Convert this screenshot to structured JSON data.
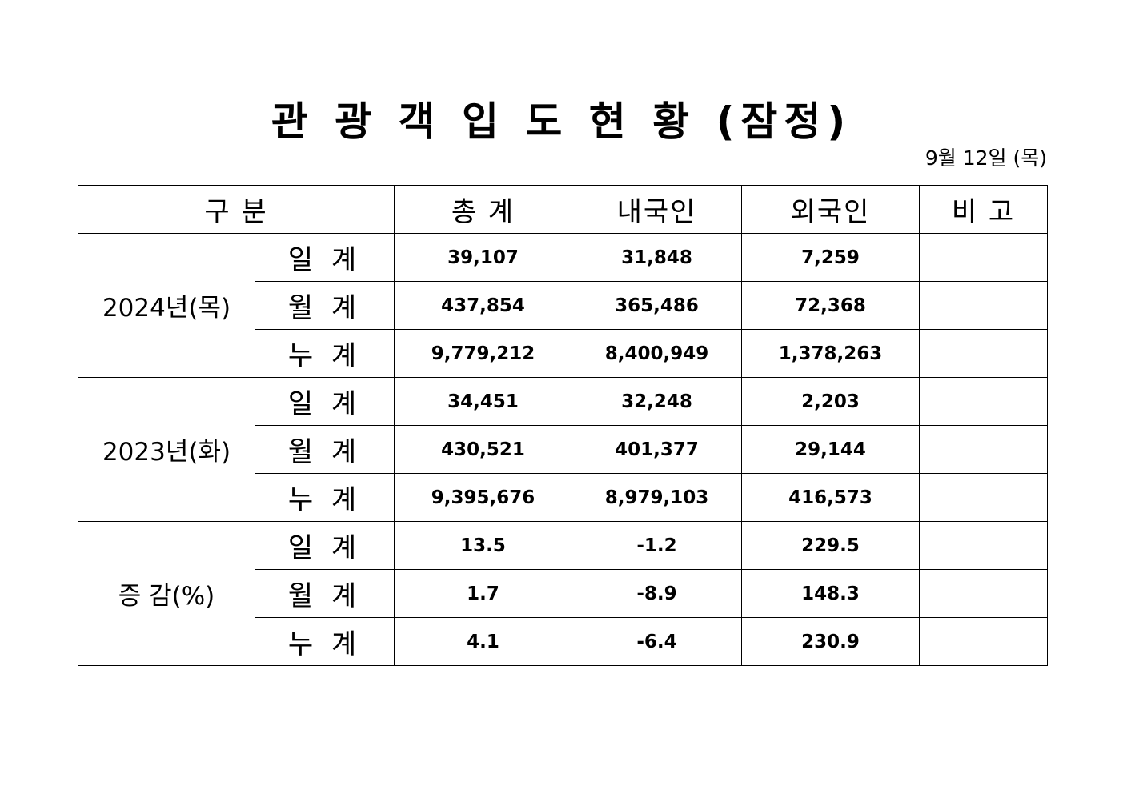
{
  "title": "관 광 객 입 도 현 황 (잠정)",
  "date": "9월 12일 (목)",
  "table": {
    "header": [
      "구 분",
      "총 계",
      "내국인",
      "외국인",
      "비 고"
    ],
    "groups": [
      {
        "label": "2024년(목)",
        "rows": [
          {
            "label": "일 계",
            "values": [
              "39,107",
              "31,848",
              "7,259"
            ]
          },
          {
            "label": "월 계",
            "values": [
              "437,854",
              "365,486",
              "72,368"
            ]
          },
          {
            "label": "누 계",
            "values": [
              "9,779,212",
              "8,400,949",
              "1,378,263"
            ]
          }
        ]
      },
      {
        "label": "2023년(화)",
        "rows": [
          {
            "label": "일 계",
            "values": [
              "34,451",
              "32,248",
              "2,203"
            ]
          },
          {
            "label": "월 계",
            "values": [
              "430,521",
              "401,377",
              "29,144"
            ]
          },
          {
            "label": "누 계",
            "values": [
              "9,395,676",
              "8,979,103",
              "416,573"
            ]
          }
        ]
      },
      {
        "label": "증 감(%)",
        "rows": [
          {
            "label": "일 계",
            "values": [
              "13.5",
              "-1.2",
              "229.5"
            ]
          },
          {
            "label": "월 계",
            "values": [
              "1.7",
              "-8.9",
              "148.3"
            ]
          },
          {
            "label": "누 계",
            "values": [
              "4.1",
              "-6.4",
              "230.9"
            ]
          }
        ]
      }
    ]
  }
}
